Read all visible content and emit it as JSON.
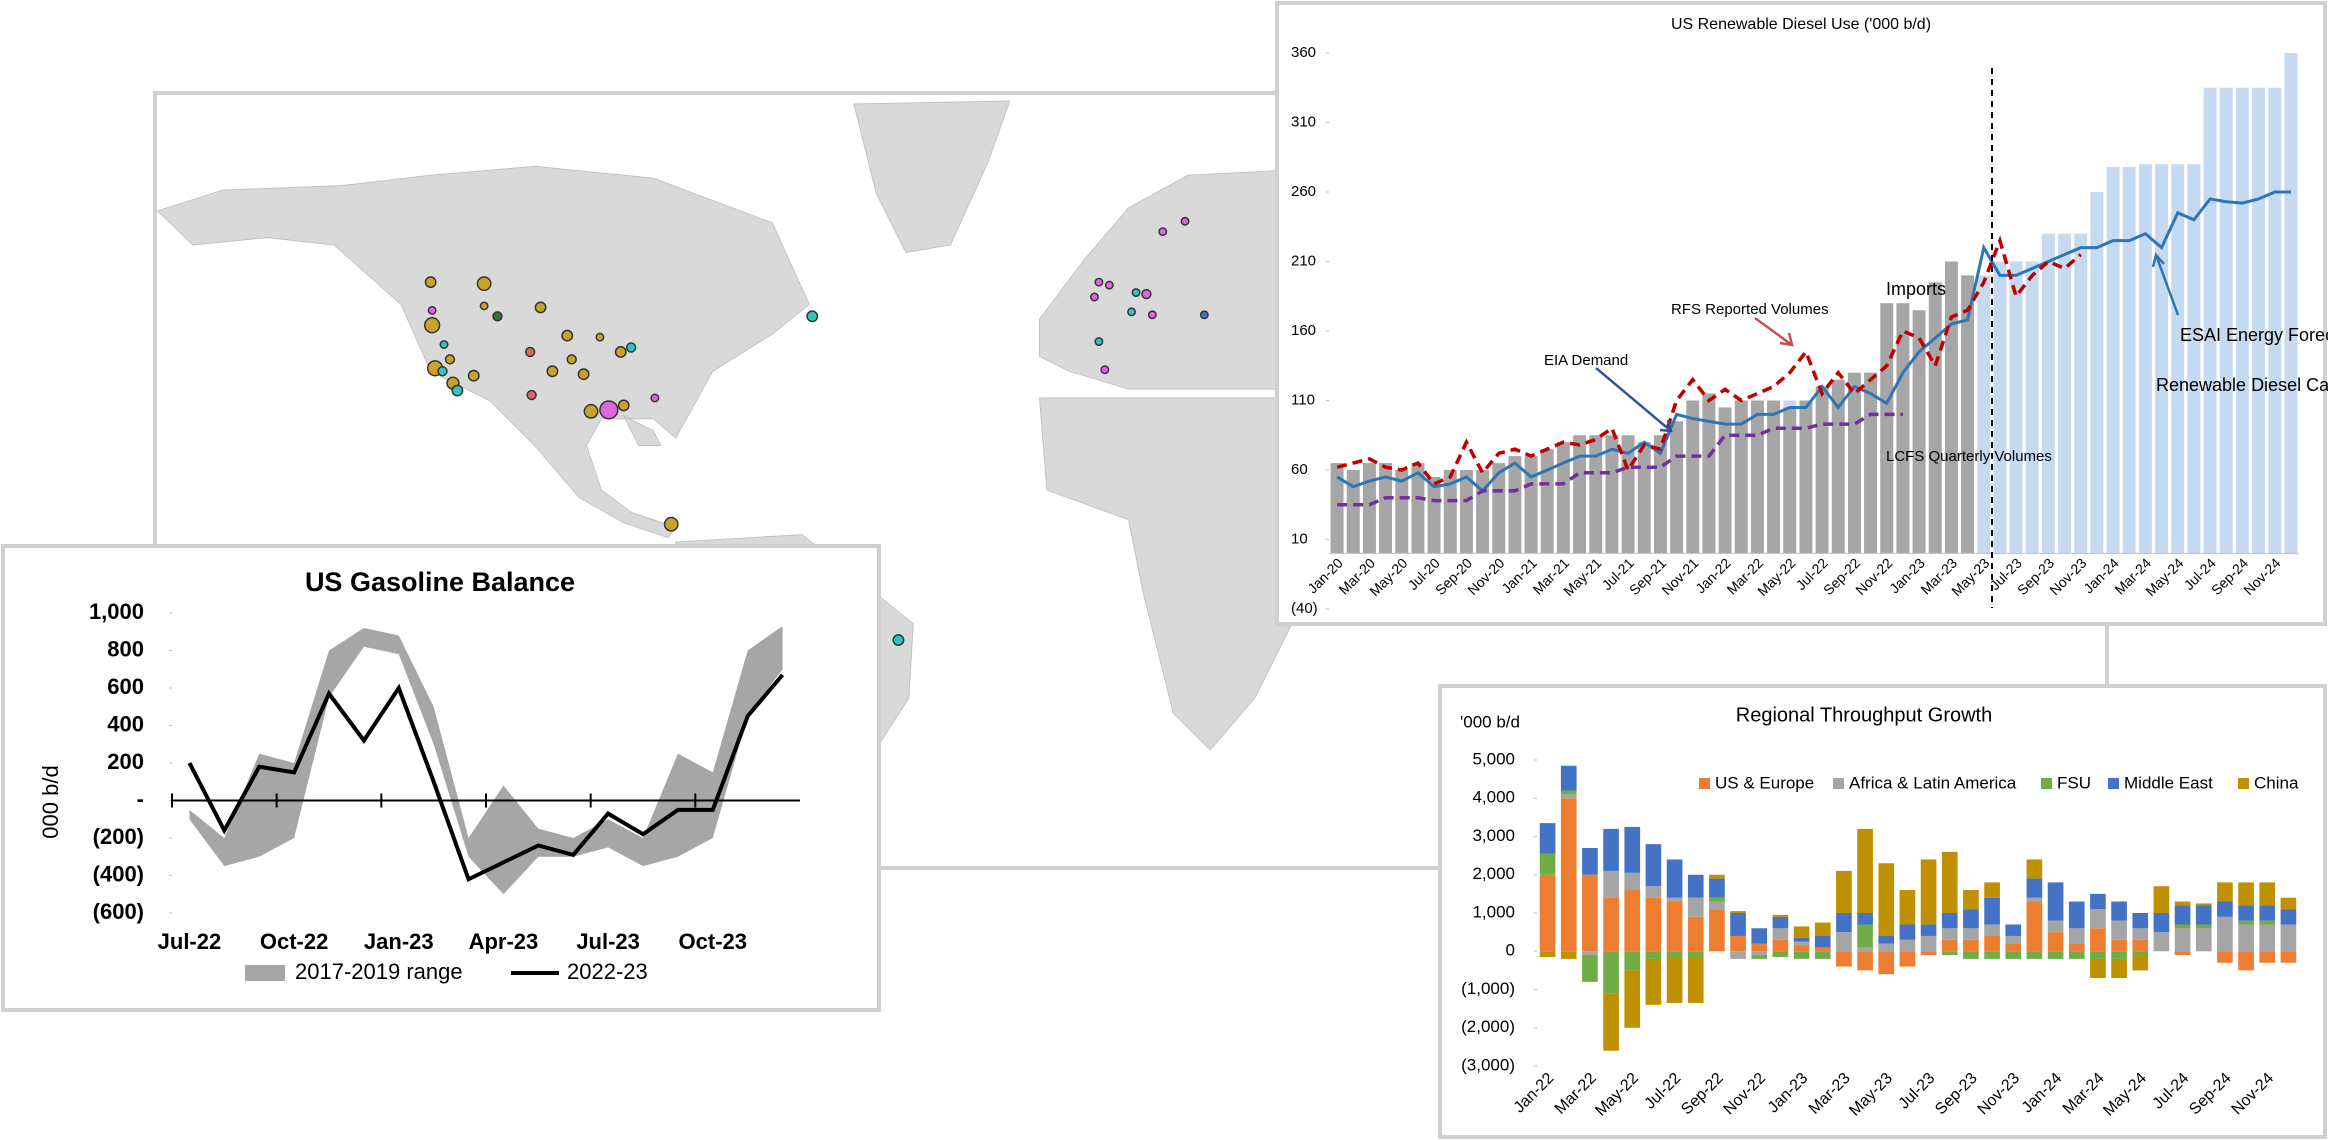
{
  "chart_data": [
    {
      "type": "line",
      "title": "US Gasoline Balance",
      "ylabel": "000 b/d",
      "categories": [
        "Jul-22",
        null,
        null,
        "Oct-22",
        null,
        null,
        "Jan-23",
        null,
        null,
        "Apr-23",
        null,
        null,
        "Jul-23",
        null,
        null,
        "Oct-23",
        null,
        null
      ],
      "series": [
        {
          "name": "2017-2019 range",
          "color": "#a6a6a6",
          "low": [
            -100,
            -350,
            -300,
            -200,
            550,
            820,
            780,
            300,
            -300,
            -500,
            -300,
            -300,
            -250,
            -350,
            -300,
            -200,
            450,
            700
          ],
          "high": [
            -50,
            -200,
            250,
            200,
            800,
            920,
            880,
            500,
            -200,
            80,
            -150,
            -200,
            -100,
            -200,
            250,
            150,
            800,
            930
          ]
        },
        {
          "name": "2022-23",
          "color": "#000000",
          "values": [
            200,
            -160,
            180,
            150,
            570,
            320,
            600,
            100,
            -420,
            -330,
            -240,
            -290,
            -70,
            -180,
            -50,
            -50,
            450,
            670
          ]
        }
      ],
      "ylim": [
        -600,
        1000
      ],
      "yticks": [
        {
          "value": 1000,
          "label": "1,000"
        },
        800,
        600,
        400,
        200,
        {
          "value": 0,
          "label": "-"
        },
        {
          "value": -200,
          "label": "(200)"
        },
        {
          "value": -400,
          "label": "(400)"
        },
        {
          "value": -600,
          "label": "(600)"
        }
      ],
      "grid": false,
      "legend": "bottom"
    },
    {
      "type": "combo",
      "title": "US Renewable Diesel Use ('000 b/d)",
      "categories": [
        "Jan-20",
        null,
        "Mar-20",
        null,
        "May-20",
        null,
        "Jul-20",
        null,
        "Sep-20",
        null,
        "Nov-20",
        null,
        "Jan-21",
        null,
        "Mar-21",
        null,
        "May-21",
        null,
        "Jul-21",
        null,
        "Sep-21",
        null,
        "Nov-21",
        null,
        "Jan-22",
        null,
        "Mar-22",
        null,
        "May-22",
        null,
        "Jul-22",
        null,
        "Sep-22",
        null,
        "Nov-22",
        null,
        "Jan-23",
        null,
        "Mar-23",
        null,
        "May-23",
        null,
        "Jul-23",
        null,
        "Sep-23",
        null,
        "Nov-23",
        null,
        "Jan-24",
        null,
        "Mar-24",
        null,
        "May-24",
        null,
        "Jul-24",
        null,
        "Sep-24",
        null,
        "Nov-24",
        null
      ],
      "series": [
        {
          "name": "Renewable Diesel Capacity",
          "kind": "bar",
          "color": "#c5d9f1",
          "values": [
            55,
            55,
            60,
            55,
            55,
            55,
            55,
            55,
            55,
            55,
            55,
            55,
            55,
            60,
            60,
            65,
            65,
            70,
            70,
            75,
            75,
            95,
            100,
            100,
            105,
            105,
            105,
            110,
            110,
            110,
            115,
            115,
            120,
            120,
            125,
            130,
            130,
            140,
            150,
            160,
            200,
            210,
            210,
            210,
            230,
            230,
            230,
            260,
            278,
            278,
            280,
            280,
            280,
            280,
            335,
            335,
            335,
            335,
            335,
            360
          ]
        },
        {
          "name": "Imports",
          "kind": "bar",
          "color": "#a6a6a6",
          "values": [
            65,
            60,
            65,
            65,
            60,
            65,
            55,
            60,
            60,
            60,
            65,
            70,
            70,
            75,
            80,
            85,
            85,
            85,
            85,
            80,
            85,
            95,
            110,
            115,
            105,
            110,
            110,
            110,
            105,
            110,
            120,
            125,
            130,
            130,
            180,
            180,
            175,
            195,
            210,
            200,
            null,
            null,
            null,
            null,
            null,
            null,
            null,
            null,
            null,
            null,
            null,
            null,
            null,
            null,
            null,
            null,
            null,
            null,
            null,
            null
          ]
        },
        {
          "name": "EIA Demand",
          "kind": "line",
          "dash": false,
          "color": "#2e75b6",
          "values": [
            55,
            48,
            52,
            55,
            52,
            58,
            48,
            50,
            55,
            45,
            58,
            65,
            55,
            60,
            65,
            70,
            70,
            75,
            72,
            80,
            72,
            100,
            97,
            95,
            93,
            93,
            100,
            100,
            105,
            105,
            120,
            105,
            120,
            115,
            108,
            130,
            145,
            155,
            165,
            168,
            220,
            200,
            200,
            205,
            210,
            215,
            220,
            220,
            225,
            225,
            230,
            220,
            245,
            240,
            255,
            253,
            252,
            255,
            260,
            260
          ]
        },
        {
          "name": "RFS Reported Volumes",
          "kind": "line",
          "dash": true,
          "color": "#c00000",
          "values": [
            62,
            65,
            68,
            62,
            60,
            65,
            50,
            55,
            80,
            58,
            72,
            75,
            70,
            75,
            80,
            78,
            82,
            90,
            60,
            78,
            75,
            110,
            125,
            110,
            118,
            110,
            115,
            120,
            130,
            145,
            115,
            130,
            115,
            125,
            135,
            160,
            155,
            135,
            170,
            175,
            195,
            225,
            185,
            200,
            210,
            205,
            215,
            null,
            null,
            null,
            null,
            null,
            null,
            null,
            null,
            null,
            null,
            null,
            null,
            null
          ]
        },
        {
          "name": "LCFS Quarterly Volumes",
          "kind": "line",
          "dash": true,
          "color": "#7030a0",
          "values": [
            35,
            35,
            35,
            40,
            40,
            40,
            38,
            38,
            38,
            45,
            45,
            45,
            50,
            50,
            50,
            58,
            58,
            58,
            62,
            62,
            62,
            70,
            70,
            70,
            85,
            85,
            85,
            90,
            90,
            90,
            93,
            93,
            93,
            100,
            100,
            100,
            null,
            null,
            null,
            null,
            null,
            null,
            null,
            null,
            null,
            null,
            null,
            null,
            null,
            null,
            null,
            null,
            null,
            null,
            null,
            null,
            null,
            null,
            null,
            null
          ]
        }
      ],
      "annotations": [
        "ESAI Energy Forecast"
      ],
      "ylim": [
        -40,
        360
      ],
      "yticks": [
        360,
        310,
        260,
        210,
        160,
        110,
        60,
        10,
        {
          "value": -40,
          "label": "(40)"
        }
      ],
      "grid": false
    },
    {
      "type": "bar",
      "stacked": true,
      "title": "Regional Throughput Growth",
      "ylabel": "'000 b/d",
      "categories": [
        "Jan-22",
        null,
        "Mar-22",
        null,
        "May-22",
        null,
        "Jul-22",
        null,
        "Sep-22",
        null,
        "Nov-22",
        null,
        "Jan-23",
        null,
        "Mar-23",
        null,
        "May-23",
        null,
        "Jul-23",
        null,
        "Sep-23",
        null,
        "Nov-23",
        null,
        "Jan-24",
        null,
        "Mar-24",
        null,
        "May-24",
        null,
        "Jul-24",
        null,
        "Sep-24",
        null,
        "Nov-24",
        null
      ],
      "series": [
        {
          "name": "US & Europe",
          "color": "#ed7d31",
          "values": [
            2000,
            4000,
            2000,
            1400,
            1600,
            1400,
            1300,
            900,
            1100,
            400,
            200,
            300,
            150,
            100,
            -400,
            -500,
            -600,
            -400,
            -100,
            300,
            300,
            400,
            200,
            1300,
            500,
            200,
            600,
            300,
            300,
            0,
            -100,
            0,
            -300,
            -500,
            -300,
            -300
          ]
        },
        {
          "name": "Africa & Latin America",
          "color": "#a5a5a5",
          "values": [
            0,
            100,
            -100,
            700,
            450,
            300,
            100,
            500,
            200,
            -200,
            -100,
            300,
            100,
            0,
            500,
            100,
            200,
            300,
            400,
            300,
            300,
            300,
            200,
            100,
            300,
            400,
            500,
            500,
            300,
            500,
            600,
            600,
            900,
            700,
            700,
            700
          ]
        },
        {
          "name": "FSU",
          "color": "#70ad47",
          "values": [
            550,
            100,
            -700,
            -1100,
            -500,
            -200,
            -150,
            -150,
            100,
            0,
            -100,
            -150,
            -200,
            -200,
            0,
            600,
            0,
            0,
            0,
            -100,
            -200,
            -200,
            -200,
            -200,
            -200,
            -200,
            -200,
            -200,
            -100,
            0,
            100,
            100,
            0,
            100,
            100,
            0
          ]
        },
        {
          "name": "Middle East",
          "color": "#4472c4",
          "values": [
            800,
            650,
            700,
            1100,
            1200,
            1100,
            1000,
            600,
            500,
            600,
            400,
            300,
            100,
            300,
            500,
            300,
            200,
            400,
            300,
            400,
            500,
            700,
            300,
            500,
            1000,
            700,
            400,
            500,
            400,
            500,
            500,
            500,
            400,
            400,
            400,
            400
          ]
        },
        {
          "name": "China",
          "color": "#bf9000",
          "values": [
            -150,
            -200,
            0,
            -1500,
            -1500,
            -1200,
            -1200,
            -1200,
            100,
            50,
            0,
            50,
            300,
            350,
            1100,
            2200,
            1900,
            900,
            1700,
            1600,
            500,
            400,
            0,
            500,
            0,
            0,
            -500,
            -500,
            -400,
            700,
            100,
            50,
            500,
            600,
            600,
            300
          ]
        }
      ],
      "ylim": [
        -3000,
        5000
      ],
      "yticks": [
        {
          "value": 5000,
          "label": "5,000"
        },
        {
          "value": 4000,
          "label": "4,000"
        },
        {
          "value": 3000,
          "label": "3,000"
        },
        {
          "value": 2000,
          "label": "2,000"
        },
        {
          "value": 1000,
          "label": "1,000"
        },
        0,
        {
          "value": -1000,
          "label": "(1,000)"
        },
        {
          "value": -2000,
          "label": "(2,000)"
        },
        {
          "value": -3000,
          "label": "(3,000)"
        }
      ],
      "grid": false,
      "legend": "top"
    }
  ]
}
